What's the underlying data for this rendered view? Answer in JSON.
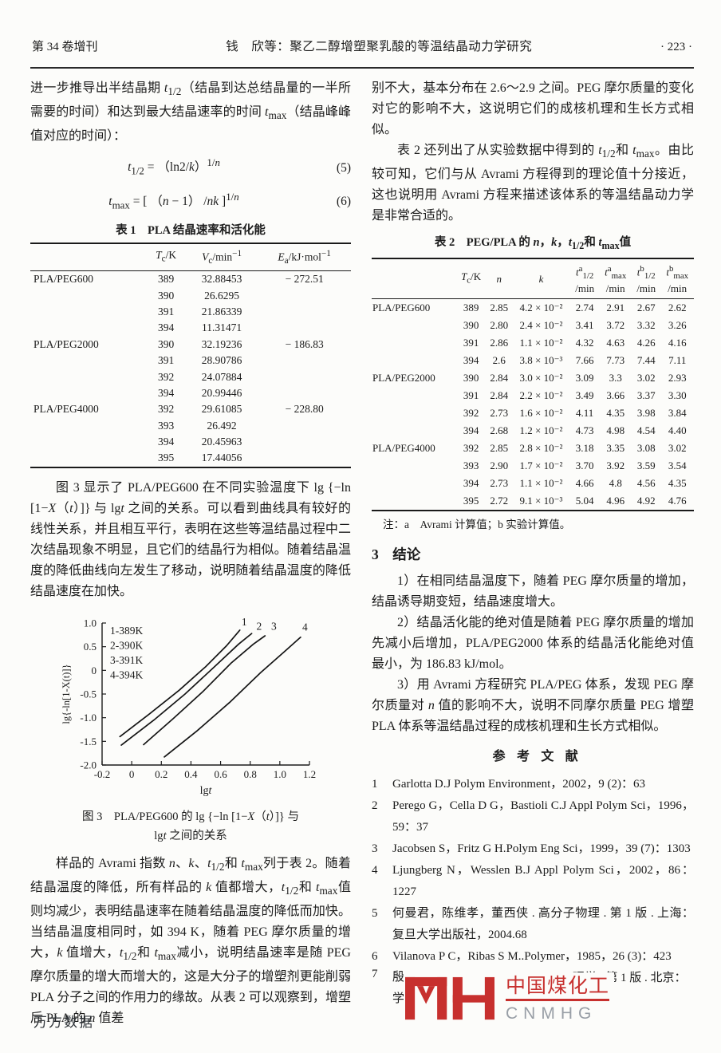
{
  "header": {
    "left": "第 34 卷增刊",
    "center": "钱　欣等：聚乙二醇增塑聚乳酸的等温结晶动力学研究",
    "right": "· 223 ·"
  },
  "left_column": {
    "para_intro": "进一步推导出半结晶期 <i>t</i><sub>1/2</sub>（结晶到达总结晶量的一半所需要的时间）和达到最大结晶速率的时间 <i>t</i><sub>max</sub>（结晶峰峰值对应的时间）：",
    "eq5": {
      "body": "<i>t</i><sub>1/2</sub> = （ln2/<i>k</i>）<sup>1/<i>n</i></sup>",
      "number": "(5)"
    },
    "eq6": {
      "body": "<i>t</i><sub>max</sub> = [ （<i>n</i> − 1） /<i>nk</i> ]<sup>1/<i>n</i></sup>",
      "number": "(6)"
    },
    "table1": {
      "title": "表 1　PLA 结晶速率和活化能",
      "headers": [
        "",
        "<i>T</i><sub>c</sub>/K",
        "<i>V</i><sub>c</sub>/min<sup>−1</sup>",
        "<i>E</i><sub>a</sub>/kJ·mol<sup>−1</sup>"
      ],
      "rows": [
        [
          "PLA/PEG600",
          "389",
          "32.88453",
          "− 272.51"
        ],
        [
          "",
          "390",
          "26.6295",
          ""
        ],
        [
          "",
          "391",
          "21.86339",
          ""
        ],
        [
          "",
          "394",
          "11.31471",
          ""
        ],
        [
          "PLA/PEG2000",
          "390",
          "32.19236",
          "− 186.83"
        ],
        [
          "",
          "391",
          "28.90786",
          ""
        ],
        [
          "",
          "392",
          "24.07884",
          ""
        ],
        [
          "",
          "394",
          "20.99446",
          ""
        ],
        [
          "PLA/PEG4000",
          "392",
          "29.61085",
          "− 228.80"
        ],
        [
          "",
          "393",
          "26.492",
          ""
        ],
        [
          "",
          "394",
          "20.45963",
          ""
        ],
        [
          "",
          "395",
          "17.44056",
          ""
        ]
      ]
    },
    "para_fig": "图 3 显示了 PLA/PEG600 在不同实验温度下 lg {−ln [1−<i>X</i>（<i>t</i>）]} 与 lg<i>t</i> 之间的关系。可以看到曲线具有较好的线性关系，并且相互平行，表明在这些等温结晶过程中二次结晶现象不明显，且它们的结晶行为相似。随着结晶温度的降低曲线向左发生了移动，说明随着结晶温度的降低结晶速度在加快。",
    "fig_caption_line1": "图 3　PLA/PEG600 的 lg {−ln [1−<i>X</i>（<i>t</i>）]} 与",
    "fig_caption_line2": "lg<i>t</i> 之间的关系",
    "para_avrami": "样品的 Avrami 指数 <i>n</i>、<i>k</i>、<i>t</i><sub>1/2</sub>和 <i>t</i><sub>max</sub>列于表 2。随着结晶温度的降低，所有样品的 <i>k</i> 值都增大，<i>t</i><sub>1/2</sub>和 <i>t</i><sub>max</sub>值则均减少，表明结晶速率在随着结晶温度的降低而加快。当结晶温度相同时，如 394 K，随着 PEG 摩尔质量的增大，<i>k</i> 值增大，<i>t</i><sub>1/2</sub>和 <i>t</i><sub>max</sub>减小，说明结晶速率是随 PEG 摩尔质量的增大而增大的，这是大分子的增塑剂更能削弱 PLA 分子之间的作用力的缘故。从表 2 可以观察到，增塑后 PLA 的 <i>n</i> 值差"
  },
  "chart_data": {
    "type": "line",
    "title": "",
    "xlabel": "lgt",
    "ylabel": "lg{-ln[1-X(t)]}",
    "xlim": [
      -0.2,
      1.2
    ],
    "ylim": [
      -2.0,
      1.0
    ],
    "xticks": [
      "-0.2",
      "0",
      "0.2",
      "0.4",
      "0.6",
      "0.8",
      "1.0",
      "1.2"
    ],
    "yticks": [
      "1.0",
      "0.5",
      "0",
      "-0.5",
      "-1.0",
      "-1.5",
      "-2.0"
    ],
    "grid": false,
    "legend_position": "inside-top-left",
    "legend": [
      "1-389K",
      "2-390K",
      "3-391K",
      "4-394K"
    ],
    "series": [
      {
        "name": "389K",
        "label": "1",
        "label_at": [
          0.76,
          0.95
        ],
        "points": [
          [
            -0.08,
            -1.4
          ],
          [
            0.12,
            -0.92
          ],
          [
            0.32,
            -0.42
          ],
          [
            0.5,
            0.08
          ],
          [
            0.64,
            0.52
          ],
          [
            0.73,
            0.85
          ]
        ]
      },
      {
        "name": "390K",
        "label": "2",
        "label_at": [
          0.86,
          0.86
        ],
        "points": [
          [
            -0.07,
            -1.58
          ],
          [
            0.15,
            -1.05
          ],
          [
            0.36,
            -0.5
          ],
          [
            0.56,
            0.08
          ],
          [
            0.72,
            0.55
          ],
          [
            0.81,
            0.78
          ]
        ]
      },
      {
        "name": "391K",
        "label": "3",
        "label_at": [
          0.96,
          0.86
        ],
        "points": [
          [
            0.08,
            -1.57
          ],
          [
            0.28,
            -1.02
          ],
          [
            0.48,
            -0.45
          ],
          [
            0.67,
            0.15
          ],
          [
            0.82,
            0.55
          ],
          [
            0.9,
            0.73
          ]
        ]
      },
      {
        "name": "394K",
        "label": "4",
        "label_at": [
          1.17,
          0.84
        ],
        "points": [
          [
            0.22,
            -1.83
          ],
          [
            0.44,
            -1.28
          ],
          [
            0.66,
            -0.68
          ],
          [
            0.87,
            -0.05
          ],
          [
            1.04,
            0.42
          ],
          [
            1.14,
            0.7
          ]
        ]
      }
    ]
  },
  "right_column": {
    "para_cont": "别不大，基本分布在 2.6～2.9 之间。PEG 摩尔质量的变化对它的影响不大，这说明它们的成核机理和生长方式相似。",
    "para_table2": "表 2 还列出了从实验数据中得到的 <i>t</i><sub>1/2</sub>和 <i>t</i><sub>max</sub>。由比较可知，它们与从 Avrami 方程得到的理论值十分接近，这也说明用 Avrami 方程来描述该体系的等温结晶动力学是非常合适的。",
    "table2": {
      "title": "表 2　PEG/PLA 的 <i>n</i>，<i>k</i>，<i>t</i><sub>1/2</sub>和 <i>t</i><sub>max</sub>值",
      "headers": [
        "",
        "<i>T</i><sub>c</sub>/K",
        "<i>n</i>",
        "<i>k</i>",
        "<i>t</i><sup>a</sup><sub>1/2</sub><br>/min",
        "<i>t</i><sup>a</sup><sub>max</sub><br>/min",
        "<i>t</i><sup>b</sup><sub>1/2</sub><br>/min",
        "<i>t</i><sup>b</sup><sub>max</sub><br>/min"
      ],
      "rows": [
        [
          "PLA/PEG600",
          "389",
          "2.85",
          "4.2 × 10⁻²",
          "2.74",
          "2.91",
          "2.67",
          "2.62"
        ],
        [
          "",
          "390",
          "2.80",
          "2.4 × 10⁻²",
          "3.41",
          "3.72",
          "3.32",
          "3.26"
        ],
        [
          "",
          "391",
          "2.86",
          "1.1 × 10⁻²",
          "4.32",
          "4.63",
          "4.26",
          "4.16"
        ],
        [
          "",
          "394",
          "2.6",
          "3.8 × 10⁻³",
          "7.66",
          "7.73",
          "7.44",
          "7.11"
        ],
        [
          "PLA/PEG2000",
          "390",
          "2.84",
          "3.0 × 10⁻²",
          "3.09",
          "3.3",
          "3.02",
          "2.93"
        ],
        [
          "",
          "391",
          "2.84",
          "2.2 × 10⁻²",
          "3.49",
          "3.66",
          "3.37",
          "3.30"
        ],
        [
          "",
          "392",
          "2.73",
          "1.6 × 10⁻²",
          "4.11",
          "4.35",
          "3.98",
          "3.84"
        ],
        [
          "",
          "394",
          "2.68",
          "1.2 × 10⁻²",
          "4.73",
          "4.98",
          "4.54",
          "4.40"
        ],
        [
          "PLA/PEG4000",
          "392",
          "2.85",
          "2.8 × 10⁻²",
          "3.18",
          "3.35",
          "3.08",
          "3.02"
        ],
        [
          "",
          "393",
          "2.90",
          "1.7 × 10⁻²",
          "3.70",
          "3.92",
          "3.59",
          "3.54"
        ],
        [
          "",
          "394",
          "2.73",
          "1.1 × 10⁻²",
          "4.66",
          "4.8",
          "4.56",
          "4.35"
        ],
        [
          "",
          "395",
          "2.72",
          "9.1 × 10⁻³",
          "5.04",
          "4.96",
          "4.92",
          "4.76"
        ]
      ],
      "note": "注：a　Avrami 计算值；b 实验计算值。"
    },
    "section3": {
      "heading": "3　结论",
      "item1": "1）在相同结晶温度下，随着 PEG 摩尔质量的增加，结晶诱导期变短，结晶速度增大。",
      "item2": "2）结晶活化能的绝对值是随着 PEG 摩尔质量的增加先减小后增加，PLA/PEG2000 体系的结晶活化能绝对值最小，为 186.83 kJ/mol。",
      "item3": "3）用 Avrami 方程研究 PLA/PEG 体系，发现 PEG 摩尔质量对 <i>n</i> 值的影响不大，说明不同摩尔质量 PEG 增塑 PLA 体系等温结晶过程的成核机理和生长方式相似。"
    },
    "references_heading": "参考文献",
    "references": [
      {
        "num": "1",
        "text": "Garlotta D.J Polym Environment，2002，9 (2)：63"
      },
      {
        "num": "2",
        "text": "Perego G，Cella D G，Bastioli C.J Appl Polym Sci，1996，59：37"
      },
      {
        "num": "3",
        "text": "Jacobsen S，Fritz G H.Polym Eng Sci，1999，39 (7)：1303"
      },
      {
        "num": "4",
        "text": "Ljungberg N，Wesslen B.J Appl Polym Sci，2002，86：1227"
      },
      {
        "num": "5",
        "text": "何曼君，陈维孝，董西侠 . 高分子物理 . 第 1 版 . 上海：复旦大学出版社，2004.68"
      },
      {
        "num": "6",
        "text": "Vilanova P C，Ribas S M..Polymer，1985，26 (3)：423"
      }
    ],
    "reference7": {
      "num": "7",
      "pre": "殷",
      "post": "理学 . 第 1 版 . 北京：科",
      "line2": "学"
    }
  },
  "watermark": {
    "cn": "中国煤化工",
    "en": "CNMHG",
    "color": "#c7302e"
  },
  "footer": {
    "text": "万方数据"
  }
}
